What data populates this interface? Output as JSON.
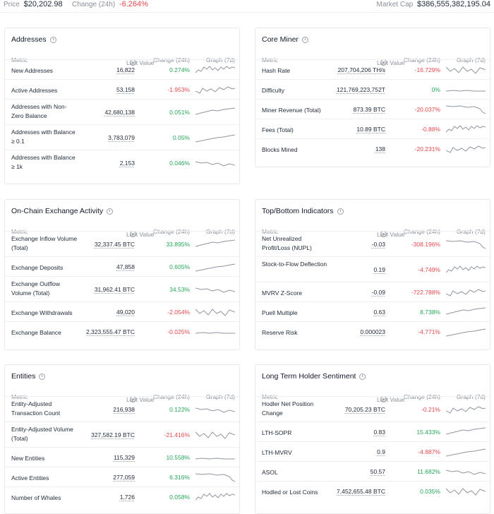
{
  "header": {
    "price_label": "Price",
    "price_value": "$20,202.98",
    "change_label": "Change (24h)",
    "change_value": "-6.264%",
    "mcap_label": "Market Cap",
    "mcap_value": "$386,555,382,195.04"
  },
  "columns": [
    "Metric",
    "Last Value",
    "Change (24h)",
    "Graph (7d)"
  ],
  "colors": {
    "positive": "#26a65b",
    "negative": "#e5484d",
    "line": "#8f959e"
  },
  "cards": {
    "addresses": {
      "title": "Addresses",
      "rows": [
        {
          "metric": "New Addresses",
          "value": "16,822",
          "change": "0.274%",
          "sign": "pos"
        },
        {
          "metric": "Active Addresses",
          "value": "53,158",
          "change": "-1.953%",
          "sign": "neg"
        },
        {
          "metric": "Addresses with Non-Zero Balance",
          "value": "42,680,138",
          "change": "0.051%",
          "sign": "pos"
        },
        {
          "metric": "Addresses with Balance ≥ 0.1",
          "value": "3,783,079",
          "change": "0.05%",
          "sign": "pos"
        },
        {
          "metric": "Addresses with Balance ≥ 1k",
          "value": "2,153",
          "change": "0.046%",
          "sign": "pos"
        }
      ]
    },
    "core_miner": {
      "title": "Core Miner",
      "rows": [
        {
          "metric": "Hash Rate",
          "value": "207,704,206 TH/s",
          "change": "-16.729%",
          "sign": "neg"
        },
        {
          "metric": "Difficulty",
          "value": "121,769,223,752T",
          "change": "0%",
          "sign": "pos"
        },
        {
          "metric": "Miner Revenue (Total)",
          "value": "873.39 BTC",
          "change": "-20.037%",
          "sign": "neg"
        },
        {
          "metric": "Fees (Total)",
          "value": "10.89 BTC",
          "change": "-0.88%",
          "sign": "neg"
        },
        {
          "metric": "Blocks Mined",
          "value": "138",
          "change": "-20.231%",
          "sign": "neg"
        }
      ]
    },
    "exchange": {
      "title": "On-Chain Exchange Activity",
      "rows": [
        {
          "metric": "Exchange Inflow Volume (Total)",
          "value": "32,337.45 BTC",
          "change": "33.895%",
          "sign": "pos"
        },
        {
          "metric": "Exchange Deposits",
          "value": "47,858",
          "change": "0.605%",
          "sign": "pos"
        },
        {
          "metric": "Exchange Outflow Volume (Total)",
          "value": "31,962.41 BTC",
          "change": "34.53%",
          "sign": "pos"
        },
        {
          "metric": "Exchange Withdrawals",
          "value": "49,020",
          "change": "-2.054%",
          "sign": "neg"
        },
        {
          "metric": "Exchange Balance",
          "value": "2,323,555.47 BTC",
          "change": "-0.025%",
          "sign": "neg"
        }
      ]
    },
    "indicators": {
      "title": "Top/Bottom Indicators",
      "rows": [
        {
          "metric": "Net Unrealized Profit/Loss (NUPL)",
          "value": "-0.03",
          "change": "-308.196%",
          "sign": "neg"
        },
        {
          "metric": "Stock-to-Flow Deflection",
          "value": "0.19",
          "change": "-4.749%",
          "sign": "neg"
        },
        {
          "metric": "MVRV Z-Score",
          "value": "-0.09",
          "change": "-722.788%",
          "sign": "neg"
        },
        {
          "metric": "Puell Multiple",
          "value": "0.63",
          "change": "8.738%",
          "sign": "pos"
        },
        {
          "metric": "Reserve Risk",
          "value": "0.000023",
          "change": "-4.771%",
          "sign": "neg"
        }
      ]
    },
    "entities": {
      "title": "Entities",
      "rows": [
        {
          "metric": "Entity-Adjusted Transaction Count",
          "value": "216,938",
          "change": "0.122%",
          "sign": "pos"
        },
        {
          "metric": "Entity-Adjusted Volume (Total)",
          "value": "327,582.19 BTC",
          "change": "-21.416%",
          "sign": "neg"
        },
        {
          "metric": "New Entities",
          "value": "115,329",
          "change": "10.558%",
          "sign": "pos"
        },
        {
          "metric": "Active Entities",
          "value": "277,059",
          "change": "6.316%",
          "sign": "pos"
        },
        {
          "metric": "Number of Whales",
          "value": "1,726",
          "change": "0.058%",
          "sign": "pos"
        }
      ]
    },
    "lth": {
      "title": "Long Term Holder Sentiment",
      "rows": [
        {
          "metric": "Hodler Net Position Change",
          "value": "70,205.23 BTC",
          "change": "-0.21%",
          "sign": "neg"
        },
        {
          "metric": "LTH-SOPR",
          "value": "0.83",
          "change": "15.433%",
          "sign": "pos"
        },
        {
          "metric": "LTH-MVRV",
          "value": "0.9",
          "change": "-4.887%",
          "sign": "neg"
        },
        {
          "metric": "ASOL",
          "value": "50.57",
          "change": "11.682%",
          "sign": "pos"
        },
        {
          "metric": "Hodled or Lost Coins",
          "value": "7,452,655.48 BTC",
          "change": "0.035%",
          "sign": "pos"
        }
      ]
    }
  }
}
